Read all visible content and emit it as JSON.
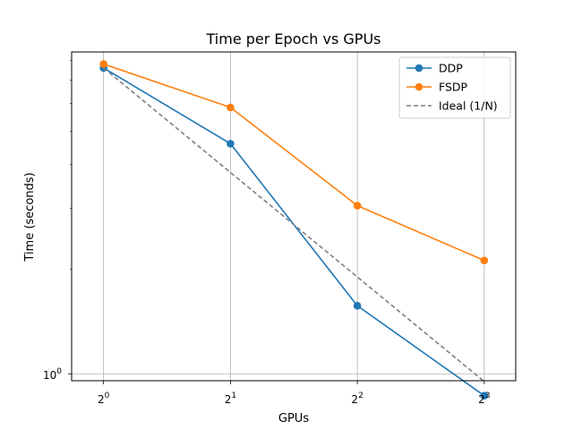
{
  "chart_data": {
    "type": "line",
    "title": "Time per Epoch vs GPUs",
    "xlabel": "GPUs",
    "ylabel": "Time (seconds)",
    "x_scale": "log2",
    "y_scale": "log",
    "x": [
      1,
      2,
      4,
      8
    ],
    "x_ticks": [
      {
        "value": 1,
        "base": "2",
        "exp": "0"
      },
      {
        "value": 2,
        "base": "2",
        "exp": "1"
      },
      {
        "value": 4,
        "base": "2",
        "exp": "2"
      },
      {
        "value": 8,
        "base": "2",
        "exp": "3"
      }
    ],
    "y_ticks": [
      {
        "value": 1,
        "base": "10",
        "exp": "0"
      }
    ],
    "xlim": [
      0.84,
      9.5
    ],
    "ylim": [
      0.955,
      8.45
    ],
    "grid": true,
    "legend_position": "top-right",
    "series": [
      {
        "name": "DDP",
        "values": [
          7.6,
          4.6,
          1.57,
          0.865
        ],
        "color": "#1f77b4",
        "style": "solid",
        "marker": "circle"
      },
      {
        "name": "FSDP",
        "values": [
          7.8,
          5.85,
          3.05,
          2.12
        ],
        "color": "#ff7f0e",
        "style": "solid",
        "marker": "circle"
      },
      {
        "name": "Ideal (1/N)",
        "values": [
          7.6,
          3.8,
          1.9,
          0.95
        ],
        "color": "#7f7f7f",
        "style": "dashed",
        "marker": "none"
      }
    ]
  }
}
